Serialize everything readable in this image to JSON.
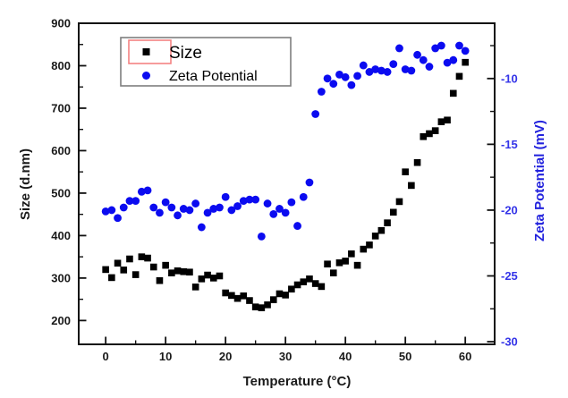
{
  "chart_data": {
    "type": "scatter",
    "title": "",
    "xlabel": "Temperature (°C)",
    "ylabel_left": "Size (d.nm)",
    "ylabel_right": "Zeta Potential (mV)",
    "xlim": [
      -4.5,
      64.9
    ],
    "ylim_left": [
      143.9,
      900
    ],
    "ylim_right": [
      -30.2,
      -5.8
    ],
    "grid": false,
    "x_ticks": {
      "major": [
        0,
        10,
        20,
        30,
        40,
        50,
        60
      ],
      "major_labels": [
        "0",
        "10",
        "20",
        "30",
        "40",
        "50",
        "60"
      ],
      "minor": [
        5,
        15,
        25,
        35,
        45,
        55
      ]
    },
    "y_left_ticks": {
      "major": [
        200,
        300,
        400,
        500,
        600,
        700,
        800,
        900
      ],
      "major_labels": [
        "200",
        "300",
        "400",
        "500",
        "600",
        "700",
        "800",
        "900"
      ],
      "minor": [
        250,
        350,
        450,
        550,
        650,
        750,
        850
      ]
    },
    "y_right_ticks": {
      "major": [
        -30,
        -25,
        -20,
        -15,
        -10
      ],
      "major_labels": [
        "-30",
        "-25",
        "-20",
        "-15",
        "-10"
      ],
      "minor": [
        -27.5,
        -22.5,
        -17.5,
        -12.5,
        -7.5
      ]
    },
    "legend": {
      "position": "top-left-inside",
      "entries": [
        {
          "label": "Size",
          "marker": "square",
          "color": "#000000",
          "highlighted": true
        },
        {
          "label": "Zeta Potential",
          "marker": "circle",
          "color": "#0b0bf0",
          "highlighted": false
        }
      ]
    },
    "series": [
      {
        "name": "Size",
        "axis": "left",
        "marker": "square",
        "color": "#000000",
        "x": [
          0,
          1,
          2,
          3,
          4,
          5,
          6,
          7,
          8,
          9,
          10,
          11,
          12,
          13,
          14,
          15,
          16,
          17,
          18,
          19,
          20,
          21,
          22,
          23,
          24,
          25,
          26,
          27,
          28,
          29,
          30,
          31,
          32,
          33,
          34,
          35,
          36,
          37,
          38,
          39,
          40,
          41,
          42,
          43,
          44,
          45,
          46,
          47,
          48,
          49,
          50,
          51,
          52,
          53,
          54,
          55,
          56,
          57,
          58,
          59,
          60
        ],
        "y": [
          320,
          301,
          335,
          319,
          345,
          308,
          350,
          347,
          326,
          294,
          330,
          312,
          317,
          315,
          314,
          279,
          298,
          307,
          300,
          305,
          265,
          259,
          252,
          258,
          247,
          232,
          230,
          237,
          249,
          263,
          260,
          274,
          284,
          291,
          298,
          287,
          280,
          333,
          312,
          336,
          340,
          357,
          330,
          368,
          378,
          399,
          412,
          430,
          455,
          480,
          550,
          518,
          572,
          633,
          640,
          647,
          668,
          672,
          735,
          775,
          808
        ]
      },
      {
        "name": "Zeta Potential",
        "axis": "right",
        "marker": "circle",
        "color": "#0b0bf0",
        "x": [
          0,
          1,
          2,
          3,
          4,
          5,
          6,
          7,
          8,
          9,
          10,
          11,
          12,
          13,
          14,
          15,
          16,
          17,
          18,
          19,
          20,
          21,
          22,
          23,
          24,
          25,
          26,
          27,
          28,
          29,
          30,
          31,
          32,
          33,
          34,
          35,
          36,
          37,
          38,
          39,
          40,
          41,
          42,
          43,
          44,
          45,
          46,
          47,
          48,
          49,
          50,
          51,
          52,
          53,
          54,
          55,
          56,
          57,
          58,
          59,
          60
        ],
        "y": [
          -20.1,
          -20.0,
          -20.6,
          -19.8,
          -19.3,
          -19.3,
          -18.6,
          -18.5,
          -19.8,
          -20.2,
          -19.4,
          -19.8,
          -20.4,
          -19.9,
          -20.0,
          -19.5,
          -21.3,
          -20.2,
          -19.9,
          -19.8,
          -19.0,
          -20.0,
          -19.7,
          -19.3,
          -19.2,
          -19.2,
          -22.0,
          -19.5,
          -20.3,
          -19.9,
          -20.2,
          -19.4,
          -21.2,
          -19.0,
          -17.9,
          -12.7,
          -11.0,
          -10.0,
          -10.4,
          -9.7,
          -9.9,
          -10.5,
          -9.8,
          -9.0,
          -9.5,
          -9.3,
          -9.4,
          -9.5,
          -8.9,
          -7.7,
          -9.3,
          -9.4,
          -8.2,
          -8.6,
          -9.1,
          -7.7,
          -7.5,
          -8.8,
          -8.6,
          -7.5,
          -7.9
        ]
      }
    ],
    "colors": {
      "background": "#ffffff",
      "frame": "#111111",
      "left_tick_label": "#1a1a1a",
      "bottom_tick_label": "#1a1a1a",
      "right_tick_label": "#3434e8",
      "right_axis_title": "#2222dd",
      "legend_border": "#7f7f7f",
      "legend_background": "#ffffff",
      "legend_highlight": "#f48282",
      "size_marker": "#000000",
      "zeta_marker": "#0b0bf0"
    }
  }
}
